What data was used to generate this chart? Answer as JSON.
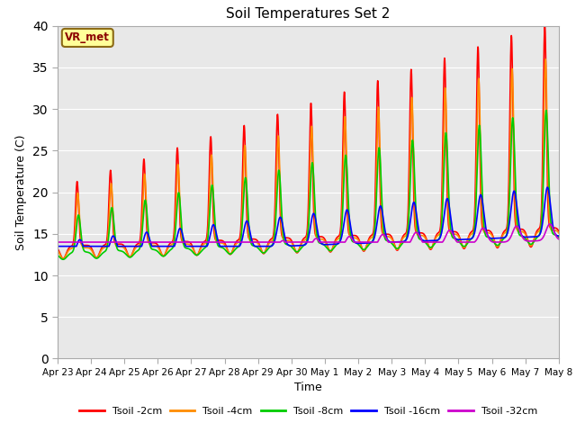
{
  "title": "Soil Temperatures Set 2",
  "xlabel": "Time",
  "ylabel": "Soil Temperature (C)",
  "ylim": [
    0,
    40
  ],
  "yticks": [
    0,
    5,
    10,
    15,
    20,
    25,
    30,
    35,
    40
  ],
  "x_labels": [
    "Apr 23",
    "Apr 24",
    "Apr 25",
    "Apr 26",
    "Apr 27",
    "Apr 28",
    "Apr 29",
    "Apr 30",
    "May 1",
    "May 2",
    "May 3",
    "May 4",
    "May 5",
    "May 6",
    "May 7",
    "May 8"
  ],
  "annotation_text": "VR_met",
  "annotation_color": "#8B0000",
  "annotation_bg": "#FFFF99",
  "bg_color": "#E8E8E8",
  "series_colors": [
    "#FF0000",
    "#FF8C00",
    "#00CC00",
    "#0000FF",
    "#CC00CC"
  ],
  "series_labels": [
    "Tsoil -2cm",
    "Tsoil -4cm",
    "Tsoil -8cm",
    "Tsoil -16cm",
    "Tsoil -32cm"
  ],
  "line_width": 1.2,
  "figsize": [
    6.4,
    4.8
  ],
  "dpi": 100
}
